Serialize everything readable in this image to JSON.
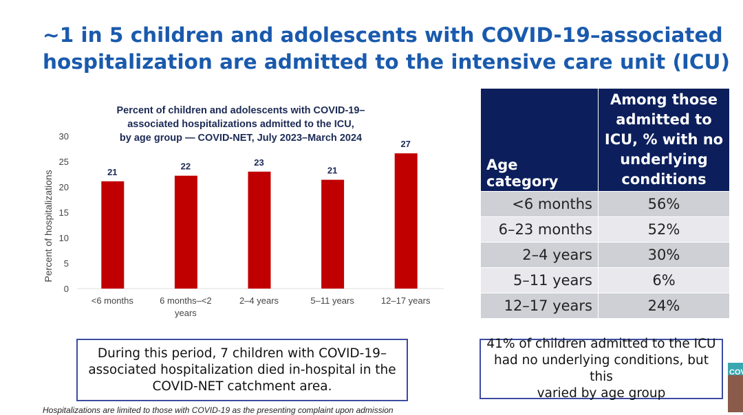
{
  "slide": {
    "title_line1": "~1 in 5 children and adolescents with COVID-19–associated",
    "title_line2": "hospitalization are admitted to the intensive care unit (ICU)",
    "box_left": [
      "During this period, 7 children with COVID-19–",
      "associated hospitalization died in-hospital in the",
      "COVID-NET catchment area."
    ],
    "box_right": [
      "41% of children admitted to the ICU",
      "had no underlying conditions, but this",
      "varied by age group"
    ],
    "footnote": "Hospitalizations are limited to those with COVID-19 as the presenting complaint upon admission",
    "thumb_text": "COV"
  },
  "table": {
    "headers": [
      "Age category",
      "Among those admitted to ICU, % with no underlying conditions"
    ],
    "rows": [
      [
        "<6 months",
        "56%"
      ],
      [
        "6–23 months",
        "52%"
      ],
      [
        "2–4 years",
        "30%"
      ],
      [
        "5–11 years",
        "6%"
      ],
      [
        "12–17 years",
        "24%"
      ]
    ]
  },
  "chart_data": {
    "type": "bar",
    "title": [
      "Percent of children and adolescents with COVID-19–",
      "associated hospitalizations admitted to the ICU,",
      "by age group — COVID-NET, July 2023–March 2024"
    ],
    "categories": [
      [
        "<6 months"
      ],
      [
        "6 months–<2",
        "years"
      ],
      [
        "2–4 years"
      ],
      [
        "5–11 years"
      ],
      [
        "12–17 years"
      ]
    ],
    "values": [
      21.1,
      22.2,
      23.0,
      21.4,
      26.6
    ],
    "labels": [
      "21",
      "22",
      "23",
      "21",
      "27"
    ],
    "ylabel": "Percent of hospitalizations",
    "ylim": [
      0,
      30
    ],
    "yticks": [
      0,
      5,
      10,
      15,
      20,
      25,
      30
    ],
    "bar_color": "#c00000",
    "grid": false
  }
}
